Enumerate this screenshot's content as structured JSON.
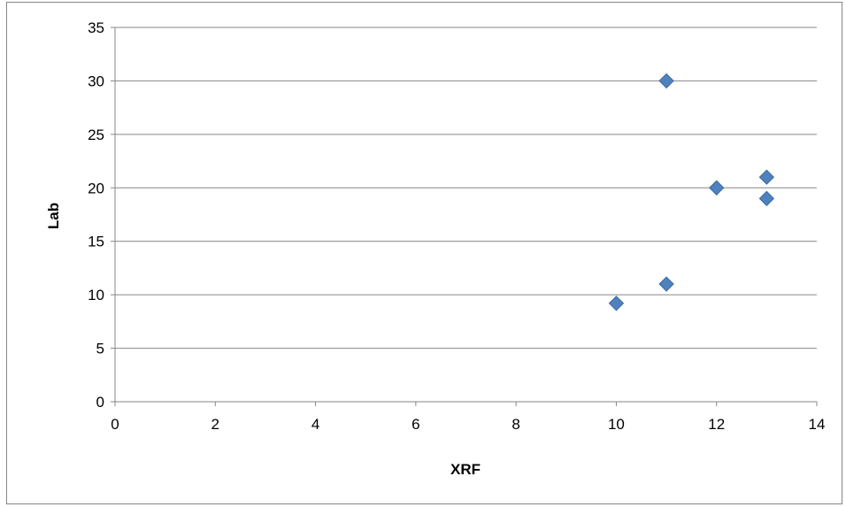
{
  "chart_data": {
    "type": "scatter",
    "title": "",
    "xlabel": "XRF",
    "ylabel": "Lab",
    "xlim": [
      0,
      14
    ],
    "ylim": [
      0,
      35
    ],
    "x_ticks": [
      0,
      2,
      4,
      6,
      8,
      10,
      12,
      14
    ],
    "y_ticks": [
      0,
      5,
      10,
      15,
      20,
      25,
      30,
      35
    ],
    "grid": "horizontal",
    "legend": "none",
    "marker": "diamond",
    "marker_color": "#4F81BD",
    "series": [
      {
        "points": [
          {
            "x": 11,
            "y": 30
          },
          {
            "x": 12,
            "y": 20
          },
          {
            "x": 13,
            "y": 21
          },
          {
            "x": 13,
            "y": 19
          },
          {
            "x": 11,
            "y": 11
          },
          {
            "x": 10,
            "y": 9.2
          }
        ]
      }
    ]
  }
}
